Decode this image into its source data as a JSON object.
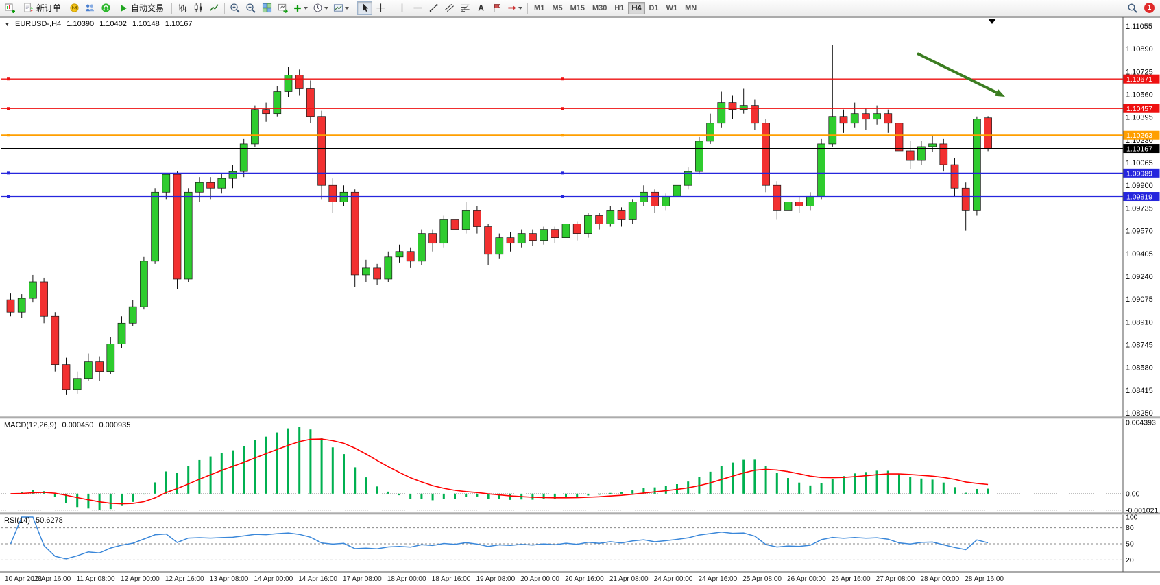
{
  "toolbar": {
    "new_order_label": "新订单",
    "auto_trading_label": "自动交易",
    "text_tool_glyph": "A",
    "timeframes": [
      "M1",
      "M5",
      "M15",
      "M30",
      "H1",
      "H4",
      "D1",
      "W1",
      "MN"
    ],
    "active_timeframe": "H4",
    "notification_count": "1"
  },
  "chart_header": {
    "symbol_period": "EURUSD-,H4",
    "open": "1.10390",
    "high": "1.10402",
    "low": "1.10148",
    "close": "1.10167"
  },
  "chart_data": {
    "type": "candlestick",
    "symbol": "EURUSD",
    "timeframe": "H4",
    "price_scale": {
      "top": 1.11055,
      "bottom": 1.0825
    },
    "price_axis_labels": [
      "1.11055",
      "1.10890",
      "1.10725",
      "1.10560",
      "1.10395",
      "1.10230",
      "1.10065",
      "1.09900",
      "1.09735",
      "1.09570",
      "1.09405",
      "1.09240",
      "1.09075",
      "1.08910",
      "1.08745",
      "1.08580",
      "1.08415",
      "1.08250"
    ],
    "date_labels": [
      "10 Apr 2023",
      "10 Apr 16:00",
      "11 Apr 08:00",
      "12 Apr 00:00",
      "12 Apr 16:00",
      "13 Apr 08:00",
      "14 Apr 00:00",
      "14 Apr 16:00",
      "17 Apr 08:00",
      "18 Apr 00:00",
      "18 Apr 16:00",
      "19 Apr 08:00",
      "20 Apr 00:00",
      "20 Apr 16:00",
      "21 Apr 08:00",
      "24 Apr 00:00",
      "24 Apr 16:00",
      "25 Apr 08:00",
      "26 Apr 00:00",
      "26 Apr 16:00",
      "27 Apr 08:00",
      "28 Apr 00:00",
      "28 Apr 16:00"
    ],
    "label_every_n_candles": 4,
    "levels": [
      {
        "price": 1.10671,
        "label": "1.10671",
        "color": "#ee1111",
        "type": "resistance"
      },
      {
        "price": 1.10457,
        "label": "1.10457",
        "color": "#ee1111",
        "type": "resistance"
      },
      {
        "price": 1.10263,
        "label": "1.10263",
        "color": "#ff9f00",
        "type": "pivot"
      },
      {
        "price": 1.10167,
        "label": "1.10167",
        "color": "#000000",
        "type": "current-price"
      },
      {
        "price": 1.09989,
        "label": "1.09989",
        "color": "#2626dd",
        "type": "support"
      },
      {
        "price": 1.09819,
        "label": "1.09819",
        "color": "#2626dd",
        "type": "support"
      }
    ],
    "colors": {
      "up": "#2ecc2e",
      "down": "#f23030",
      "wick": "#111111",
      "background": "#ffffff",
      "macd_histogram": "#00b050",
      "macd_signal": "#ff0000",
      "rsi_line": "#3a87d9",
      "arrow": "#3b7d21"
    },
    "candles_ohlc": [
      [
        1.0907,
        1.0912,
        1.0895,
        1.0898
      ],
      [
        1.0898,
        1.0911,
        1.0894,
        1.0908
      ],
      [
        1.0908,
        1.0925,
        1.0905,
        1.092
      ],
      [
        1.092,
        1.0923,
        1.089,
        1.0895
      ],
      [
        1.0895,
        1.0898,
        1.0855,
        1.086
      ],
      [
        1.086,
        1.0865,
        1.0838,
        1.0842
      ],
      [
        1.0842,
        1.0855,
        1.0839,
        1.085
      ],
      [
        1.085,
        1.0868,
        1.0848,
        1.0862
      ],
      [
        1.0862,
        1.0866,
        1.0848,
        1.0855
      ],
      [
        1.0855,
        1.088,
        1.0853,
        1.0875
      ],
      [
        1.0875,
        1.0895,
        1.0872,
        1.089
      ],
      [
        1.089,
        1.0907,
        1.0888,
        1.0902
      ],
      [
        1.0902,
        1.0938,
        1.09,
        1.0935
      ],
      [
        1.0935,
        1.0988,
        1.0933,
        1.0985
      ],
      [
        1.0985,
        1.0999,
        1.098,
        1.0998
      ],
      [
        1.0998,
        1.1,
        1.0915,
        1.0922
      ],
      [
        1.0922,
        1.0988,
        1.092,
        1.0985
      ],
      [
        1.0985,
        1.0996,
        1.0978,
        1.0992
      ],
      [
        1.0992,
        1.0996,
        1.098,
        1.0988
      ],
      [
        1.0988,
        1.0999,
        1.0984,
        1.0995
      ],
      [
        1.0995,
        1.1005,
        1.0988,
        1.1
      ],
      [
        1.1,
        1.1024,
        1.0996,
        1.102
      ],
      [
        1.102,
        1.1048,
        1.1018,
        1.1045
      ],
      [
        1.1045,
        1.105,
        1.1036,
        1.1042
      ],
      [
        1.1042,
        1.1062,
        1.104,
        1.1058
      ],
      [
        1.1058,
        1.1076,
        1.1054,
        1.107
      ],
      [
        1.107,
        1.1074,
        1.1055,
        1.106
      ],
      [
        1.106,
        1.1066,
        1.1035,
        1.104
      ],
      [
        1.104,
        1.1044,
        1.098,
        1.099
      ],
      [
        1.099,
        1.0995,
        1.097,
        1.0978
      ],
      [
        1.0978,
        1.099,
        1.0975,
        1.0985
      ],
      [
        1.0985,
        1.0987,
        1.0916,
        1.0925
      ],
      [
        1.0925,
        1.0936,
        1.092,
        1.093
      ],
      [
        1.093,
        1.0933,
        1.0918,
        1.0922
      ],
      [
        1.0922,
        1.0942,
        1.092,
        1.0938
      ],
      [
        1.0938,
        1.0947,
        1.0934,
        1.0942
      ],
      [
        1.0942,
        1.0945,
        1.093,
        1.0935
      ],
      [
        1.0935,
        1.0958,
        1.0932,
        1.0955
      ],
      [
        1.0955,
        1.0958,
        1.0942,
        1.0948
      ],
      [
        1.0948,
        1.0968,
        1.0945,
        1.0965
      ],
      [
        1.0965,
        1.0968,
        1.0952,
        1.0958
      ],
      [
        1.0958,
        1.0978,
        1.0955,
        1.0972
      ],
      [
        1.0972,
        1.0975,
        1.0955,
        1.096
      ],
      [
        1.096,
        1.0962,
        1.0932,
        1.094
      ],
      [
        1.094,
        1.0955,
        1.0937,
        1.0952
      ],
      [
        1.0952,
        1.0956,
        1.0942,
        1.0948
      ],
      [
        1.0948,
        1.0958,
        1.0945,
        1.0955
      ],
      [
        1.0955,
        1.0958,
        1.0946,
        1.095
      ],
      [
        1.095,
        1.096,
        1.0947,
        1.0958
      ],
      [
        1.0958,
        1.096,
        1.0948,
        1.0952
      ],
      [
        1.0952,
        1.0965,
        1.095,
        1.0962
      ],
      [
        1.0962,
        1.0964,
        1.095,
        1.0955
      ],
      [
        1.0955,
        1.097,
        1.0952,
        1.0968
      ],
      [
        1.0968,
        1.097,
        1.0958,
        1.0962
      ],
      [
        1.0962,
        1.0975,
        1.096,
        1.0972
      ],
      [
        1.0972,
        1.0974,
        1.096,
        1.0965
      ],
      [
        1.0965,
        1.098,
        1.0962,
        1.0978
      ],
      [
        1.0978,
        1.099,
        1.0975,
        1.0985
      ],
      [
        1.0985,
        1.0987,
        1.097,
        1.0975
      ],
      [
        1.0975,
        1.0984,
        1.0972,
        1.0982
      ],
      [
        1.0982,
        1.0993,
        1.0978,
        1.099
      ],
      [
        1.099,
        1.1003,
        1.0987,
        1.1
      ],
      [
        1.1,
        1.1025,
        1.0998,
        1.1022
      ],
      [
        1.1022,
        1.1042,
        1.102,
        1.1035
      ],
      [
        1.1035,
        1.1058,
        1.1032,
        1.105
      ],
      [
        1.105,
        1.1055,
        1.1038,
        1.1045
      ],
      [
        1.1045,
        1.106,
        1.1042,
        1.1048
      ],
      [
        1.1048,
        1.1052,
        1.103,
        1.1035
      ],
      [
        1.1035,
        1.1038,
        1.0985,
        1.099
      ],
      [
        1.099,
        1.0993,
        1.0965,
        1.0972
      ],
      [
        1.0972,
        1.0982,
        1.0968,
        1.0978
      ],
      [
        1.0978,
        1.0982,
        1.097,
        1.0975
      ],
      [
        1.0975,
        1.0985,
        1.0972,
        1.0982
      ],
      [
        1.0982,
        1.1024,
        1.098,
        1.102
      ],
      [
        1.102,
        1.1092,
        1.1018,
        1.104
      ],
      [
        1.104,
        1.1045,
        1.1028,
        1.1035
      ],
      [
        1.1035,
        1.105,
        1.1032,
        1.1042
      ],
      [
        1.1042,
        1.1046,
        1.103,
        1.1038
      ],
      [
        1.1038,
        1.1048,
        1.1034,
        1.1042
      ],
      [
        1.1042,
        1.1045,
        1.1028,
        1.1035
      ],
      [
        1.1035,
        1.1038,
        1.1,
        1.1015
      ],
      [
        1.1015,
        1.1022,
        1.1002,
        1.1008
      ],
      [
        1.1008,
        1.1022,
        1.1005,
        1.1018
      ],
      [
        1.1018,
        1.1026,
        1.1014,
        1.102
      ],
      [
        1.102,
        1.1024,
        1.1,
        1.1005
      ],
      [
        1.1005,
        1.101,
        1.0982,
        1.0988
      ],
      [
        1.0988,
        1.0992,
        1.0957,
        1.0972
      ],
      [
        1.0972,
        1.104,
        1.0968,
        1.1038
      ],
      [
        1.1039,
        1.10402,
        1.10148,
        1.10167
      ]
    ],
    "macd": {
      "label": "MACD(12,26,9)",
      "main_value": "0.000450",
      "signal_value": "0.000935",
      "fast": 12,
      "slow": 26,
      "signal": 9,
      "axis_labels": [
        "0.004393",
        "0.00",
        "-0.001021"
      ],
      "scale_max": 0.004393,
      "scale_min": -0.001021
    },
    "rsi": {
      "label": "RSI(14)",
      "value": "50.6278",
      "period": 14,
      "axis_labels": [
        "100",
        "80",
        "50",
        "20"
      ],
      "level_lines": [
        80,
        50,
        20
      ]
    }
  }
}
